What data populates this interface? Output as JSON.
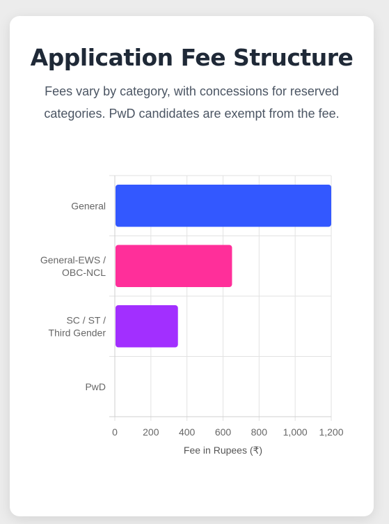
{
  "header": {
    "title": "Application Fee Structure",
    "subtitle": "Fees vary by category, with concessions for reserved categories. PwD candidates are exempt from the fee."
  },
  "chart_data": {
    "type": "bar",
    "orientation": "horizontal",
    "categories": [
      [
        "General"
      ],
      [
        "General-EWS /",
        "OBC-NCL"
      ],
      [
        "SC / ST /",
        "Third Gender"
      ],
      [
        "PwD"
      ]
    ],
    "values": [
      1200,
      650,
      350,
      0
    ],
    "colors": [
      "#3358ff",
      "#ff2f9a",
      "#a22fff",
      "#cccccc"
    ],
    "xlabel": "Fee in Rupees (₹)",
    "ylabel": "",
    "xlim": [
      0,
      1200
    ],
    "xticks": [
      "0",
      "200",
      "400",
      "600",
      "800",
      "1,000",
      "1,200"
    ],
    "grid": true,
    "legend": "none"
  }
}
